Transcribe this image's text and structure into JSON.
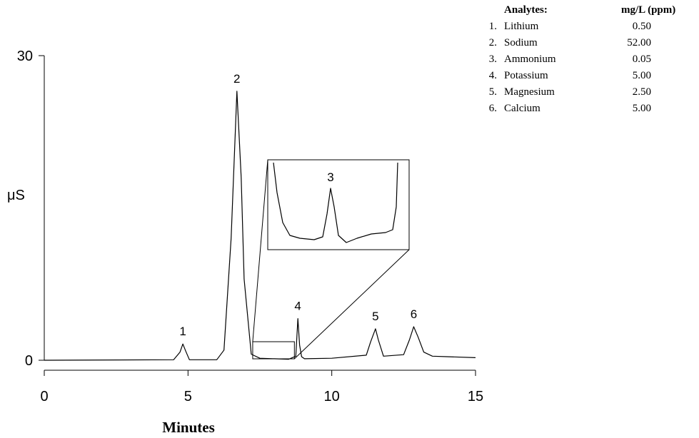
{
  "chart_data": {
    "type": "line",
    "xlabel": "Minutes",
    "ylabel": "μS",
    "xlim": [
      0,
      15
    ],
    "ylim": [
      0,
      30
    ],
    "x_ticks": [
      "0",
      "5",
      "10",
      "15"
    ],
    "y_ticks": [
      "0",
      "30"
    ],
    "grid": false,
    "series": [
      {
        "x": [
          0,
          4.5,
          4.72,
          4.82,
          4.92,
          5.05,
          6.0,
          6.25,
          6.5,
          6.7,
          6.85,
          6.95,
          7.2,
          7.5,
          8.0,
          8.5,
          8.75,
          8.82,
          8.88,
          8.95,
          9.05,
          10.0,
          11.2,
          11.35,
          11.52,
          11.62,
          11.8,
          12.5,
          12.7,
          12.85,
          13.0,
          13.2,
          13.5,
          14.0,
          15.0
        ],
        "y": [
          0.0,
          0.05,
          0.8,
          1.6,
          0.9,
          0.05,
          0.05,
          1.0,
          12.0,
          26.5,
          18.0,
          8.0,
          0.6,
          0.2,
          0.15,
          0.1,
          0.4,
          4.1,
          1.5,
          0.35,
          0.15,
          0.2,
          0.5,
          1.8,
          3.1,
          2.0,
          0.4,
          0.55,
          2.0,
          3.3,
          2.3,
          0.8,
          0.4,
          0.35,
          0.25
        ]
      }
    ],
    "peak_labels": [
      {
        "label": "1",
        "x": 4.82,
        "y": 1.6
      },
      {
        "label": "2",
        "x": 6.7,
        "y": 26.5
      },
      {
        "label": "4",
        "x": 8.82,
        "y": 4.1
      },
      {
        "label": "5",
        "x": 11.52,
        "y": 3.1
      },
      {
        "label": "6",
        "x": 12.85,
        "y": 3.3
      }
    ],
    "inset": {
      "x_range": [
        7.25,
        8.7
      ],
      "peak_label": "3"
    }
  },
  "legend": {
    "headers": [
      "Analytes:",
      "mg/L (ppm)"
    ],
    "rows": [
      {
        "num": "1.",
        "name": "Lithium",
        "value": "0.50"
      },
      {
        "num": "2.",
        "name": "Sodium",
        "value": "52.00"
      },
      {
        "num": "3.",
        "name": "Ammonium",
        "value": "0.05"
      },
      {
        "num": "4.",
        "name": "Potassium",
        "value": "5.00"
      },
      {
        "num": "5.",
        "name": "Magnesium",
        "value": "2.50"
      },
      {
        "num": "6.",
        "name": "Calcium",
        "value": "5.00"
      }
    ]
  }
}
